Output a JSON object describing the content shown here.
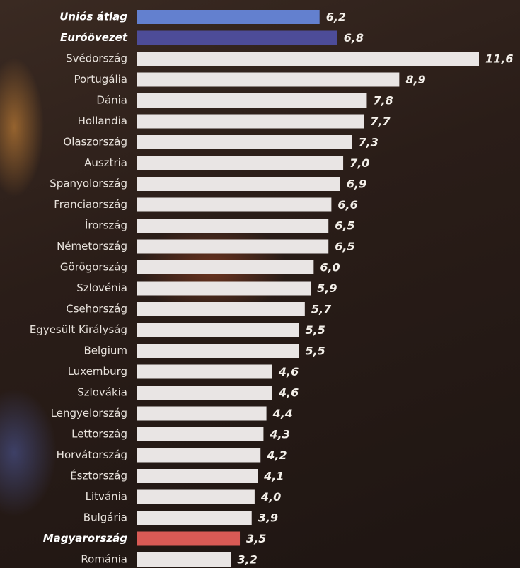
{
  "chart_data": {
    "type": "bar",
    "orientation": "horizontal",
    "categories": [
      "Uniós átlag",
      "Euróövezet",
      "Svédország",
      "Portugália",
      "Dánia",
      "Hollandia",
      "Olaszország",
      "Ausztria",
      "Spanyolország",
      "Franciaország",
      "Írország",
      "Németország",
      "Görögország",
      "Szlovénia",
      "Csehország",
      "Egyesült Királyság",
      "Belgium",
      "Luxemburg",
      "Szlovákia",
      "Lengyelország",
      "Lettország",
      "Horvátország",
      "Észtország",
      "Litvánia",
      "Bulgária",
      "Magyarország",
      "Románia"
    ],
    "values": [
      6.2,
      6.8,
      11.6,
      8.9,
      7.8,
      7.7,
      7.3,
      7.0,
      6.9,
      6.6,
      6.5,
      6.5,
      6.0,
      5.9,
      5.7,
      5.5,
      5.5,
      4.6,
      4.6,
      4.4,
      4.3,
      4.2,
      4.1,
      4.0,
      3.9,
      3.5,
      3.2
    ],
    "value_labels": [
      "6,2",
      "6,8",
      "11,6",
      "8,9",
      "7,8",
      "7,7",
      "7,3",
      "7,0",
      "6,9",
      "6,6",
      "6,5",
      "6,5",
      "6,0",
      "5,9",
      "5,7",
      "5,5",
      "5,5",
      "4,6",
      "4,6",
      "4,4",
      "4,3",
      "4,2",
      "4,1",
      "4,0",
      "3,9",
      "3,5",
      "3,2"
    ],
    "color": "#e9e5e4",
    "colors": [
      "#6380cf",
      "#4d4c98",
      "#e9e5e4",
      "#e9e5e4",
      "#e9e5e4",
      "#e9e5e4",
      "#e9e5e4",
      "#e9e5e4",
      "#e9e5e4",
      "#e9e5e4",
      "#e9e5e4",
      "#e9e5e4",
      "#e9e5e4",
      "#e9e5e4",
      "#e9e5e4",
      "#e9e5e4",
      "#e9e5e4",
      "#e9e5e4",
      "#e9e5e4",
      "#e9e5e4",
      "#e9e5e4",
      "#e9e5e4",
      "#e9e5e4",
      "#e9e5e4",
      "#e9e5e4",
      "#d95a55",
      "#e9e5e4"
    ]
  }
}
